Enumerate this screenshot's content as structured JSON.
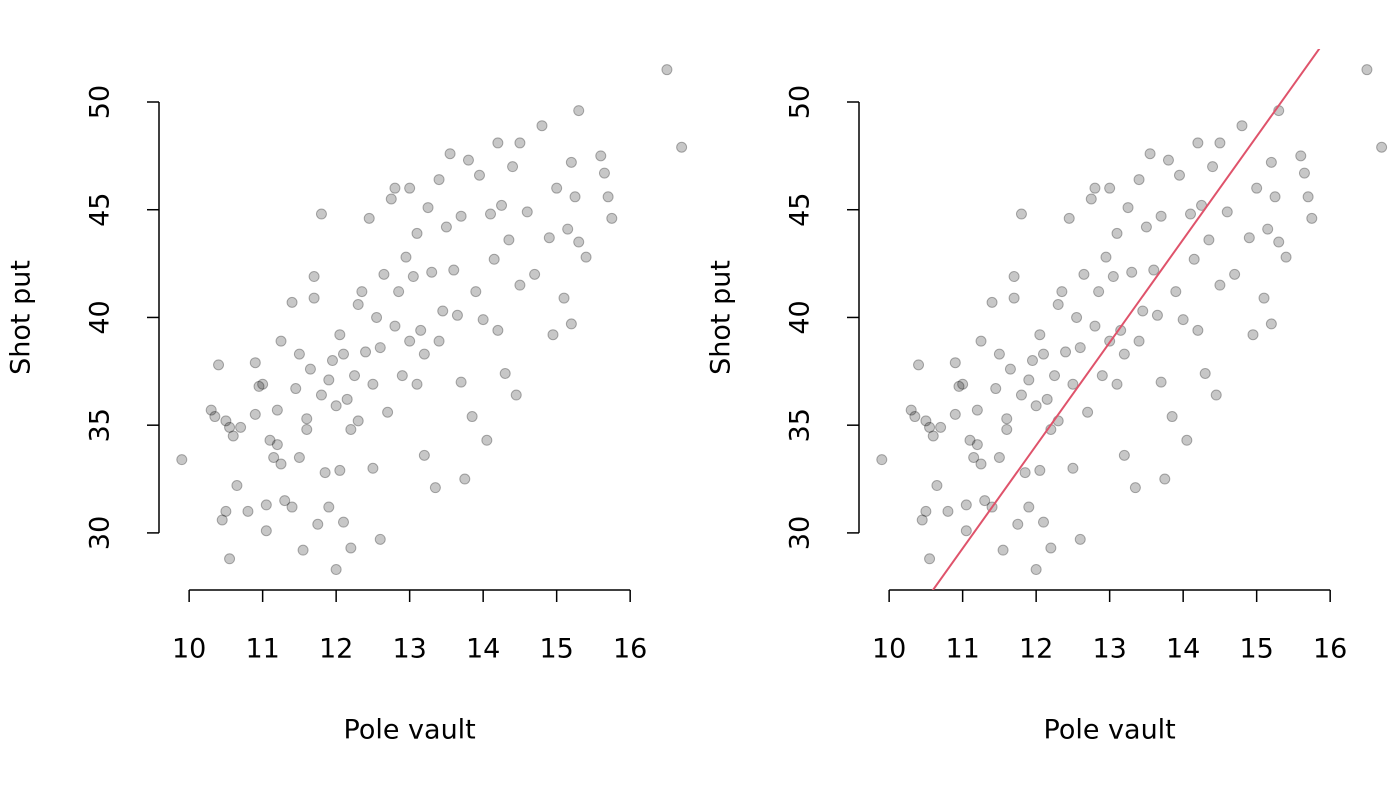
{
  "chart_data": [
    {
      "type": "scatter",
      "xlabel": "Pole vault",
      "ylabel": "Shot put",
      "color": "rgba(0,0,0,0.22)",
      "xlim": [
        9.59,
        16.95
      ],
      "ylim": [
        27.35,
        52.46
      ],
      "xticks": [
        10,
        11,
        12,
        13,
        14,
        15,
        16
      ],
      "yticks": [
        30,
        35,
        40,
        45,
        50
      ],
      "x": [
        9.9,
        10.3,
        10.35,
        10.4,
        10.45,
        10.5,
        10.5,
        10.55,
        10.6,
        10.55,
        10.65,
        10.7,
        10.8,
        10.9,
        10.9,
        10.95,
        11.0,
        11.05,
        11.05,
        11.1,
        11.15,
        11.2,
        11.2,
        11.25,
        11.25,
        11.3,
        11.4,
        11.4,
        11.45,
        11.5,
        11.5,
        11.55,
        11.6,
        11.6,
        11.65,
        11.7,
        11.7,
        11.75,
        11.8,
        11.8,
        11.85,
        11.9,
        11.9,
        11.95,
        12.0,
        12.0,
        12.05,
        12.05,
        12.1,
        12.1,
        12.15,
        12.2,
        12.2,
        12.25,
        12.3,
        12.3,
        12.35,
        12.4,
        12.45,
        12.5,
        12.5,
        12.55,
        12.6,
        12.6,
        12.65,
        12.7,
        12.75,
        12.8,
        12.8,
        12.85,
        12.9,
        12.95,
        13.0,
        13.0,
        13.05,
        13.1,
        13.1,
        13.15,
        13.2,
        13.2,
        13.25,
        13.3,
        13.35,
        13.4,
        13.4,
        13.45,
        13.5,
        13.55,
        13.6,
        13.65,
        13.7,
        13.7,
        13.75,
        13.8,
        13.85,
        13.9,
        13.95,
        14.0,
        14.05,
        14.1,
        14.15,
        14.2,
        14.2,
        14.25,
        14.3,
        14.35,
        14.4,
        14.45,
        14.5,
        14.5,
        14.6,
        14.7,
        14.8,
        14.9,
        14.95,
        15.0,
        15.1,
        15.15,
        15.2,
        15.2,
        15.25,
        15.3,
        15.3,
        15.4,
        15.6,
        15.65,
        15.7,
        15.75,
        16.5,
        16.7
      ],
      "values": [
        33.4,
        35.7,
        35.4,
        37.8,
        30.6,
        31.0,
        35.2,
        34.9,
        34.5,
        28.8,
        32.2,
        34.9,
        31.0,
        37.9,
        35.5,
        36.8,
        36.9,
        30.1,
        31.3,
        34.3,
        33.5,
        34.1,
        35.7,
        33.2,
        38.9,
        31.5,
        31.2,
        40.7,
        36.7,
        38.3,
        33.5,
        29.2,
        34.8,
        35.3,
        37.6,
        41.9,
        40.9,
        30.4,
        44.8,
        36.4,
        32.8,
        37.1,
        31.2,
        38.0,
        28.3,
        35.9,
        39.2,
        32.9,
        30.5,
        38.3,
        36.2,
        34.8,
        29.3,
        37.3,
        40.6,
        35.2,
        41.2,
        38.4,
        44.6,
        33.0,
        36.9,
        40.0,
        29.7,
        38.6,
        42.0,
        35.6,
        45.5,
        46.0,
        39.6,
        41.2,
        37.3,
        42.8,
        46.0,
        38.9,
        41.9,
        36.9,
        43.9,
        39.4,
        33.6,
        38.3,
        45.1,
        42.1,
        32.1,
        46.4,
        38.9,
        40.3,
        44.2,
        47.6,
        42.2,
        40.1,
        37.0,
        44.7,
        32.5,
        47.3,
        35.4,
        41.2,
        46.6,
        39.9,
        34.3,
        44.8,
        42.7,
        48.1,
        39.4,
        45.2,
        37.4,
        43.6,
        47.0,
        36.4,
        48.1,
        41.5,
        44.9,
        42.0,
        48.9,
        43.7,
        39.2,
        46.0,
        40.9,
        44.1,
        47.2,
        39.7,
        45.6,
        49.6,
        43.5,
        42.8,
        47.5,
        46.7,
        45.6,
        44.6,
        51.5,
        47.9
      ]
    },
    {
      "type": "scatter",
      "xlabel": "Pole vault",
      "ylabel": "Shot put",
      "color": "rgba(0,0,0,0.22)",
      "xlim": [
        9.59,
        16.95
      ],
      "ylim": [
        27.35,
        52.46
      ],
      "xticks": [
        10,
        11,
        12,
        13,
        14,
        15,
        16
      ],
      "yticks": [
        30,
        35,
        40,
        45,
        50
      ],
      "fit": {
        "intercept": -23.3,
        "slope": 4.78,
        "color": "#df536b"
      },
      "x": [
        9.9,
        10.3,
        10.35,
        10.4,
        10.45,
        10.5,
        10.5,
        10.55,
        10.6,
        10.55,
        10.65,
        10.7,
        10.8,
        10.9,
        10.9,
        10.95,
        11.0,
        11.05,
        11.05,
        11.1,
        11.15,
        11.2,
        11.2,
        11.25,
        11.25,
        11.3,
        11.4,
        11.4,
        11.45,
        11.5,
        11.5,
        11.55,
        11.6,
        11.6,
        11.65,
        11.7,
        11.7,
        11.75,
        11.8,
        11.8,
        11.85,
        11.9,
        11.9,
        11.95,
        12.0,
        12.0,
        12.05,
        12.05,
        12.1,
        12.1,
        12.15,
        12.2,
        12.2,
        12.25,
        12.3,
        12.3,
        12.35,
        12.4,
        12.45,
        12.5,
        12.5,
        12.55,
        12.6,
        12.6,
        12.65,
        12.7,
        12.75,
        12.8,
        12.8,
        12.85,
        12.9,
        12.95,
        13.0,
        13.0,
        13.05,
        13.1,
        13.1,
        13.15,
        13.2,
        13.2,
        13.25,
        13.3,
        13.35,
        13.4,
        13.4,
        13.45,
        13.5,
        13.55,
        13.6,
        13.65,
        13.7,
        13.7,
        13.75,
        13.8,
        13.85,
        13.9,
        13.95,
        14.0,
        14.05,
        14.1,
        14.15,
        14.2,
        14.2,
        14.25,
        14.3,
        14.35,
        14.4,
        14.45,
        14.5,
        14.5,
        14.6,
        14.7,
        14.8,
        14.9,
        14.95,
        15.0,
        15.1,
        15.15,
        15.2,
        15.2,
        15.25,
        15.3,
        15.3,
        15.4,
        15.6,
        15.65,
        15.7,
        15.75,
        16.5,
        16.7
      ],
      "values": [
        33.4,
        35.7,
        35.4,
        37.8,
        30.6,
        31.0,
        35.2,
        34.9,
        34.5,
        28.8,
        32.2,
        34.9,
        31.0,
        37.9,
        35.5,
        36.8,
        36.9,
        30.1,
        31.3,
        34.3,
        33.5,
        34.1,
        35.7,
        33.2,
        38.9,
        31.5,
        31.2,
        40.7,
        36.7,
        38.3,
        33.5,
        29.2,
        34.8,
        35.3,
        37.6,
        41.9,
        40.9,
        30.4,
        44.8,
        36.4,
        32.8,
        37.1,
        31.2,
        38.0,
        28.3,
        35.9,
        39.2,
        32.9,
        30.5,
        38.3,
        36.2,
        34.8,
        29.3,
        37.3,
        40.6,
        35.2,
        41.2,
        38.4,
        44.6,
        33.0,
        36.9,
        40.0,
        29.7,
        38.6,
        42.0,
        35.6,
        45.5,
        46.0,
        39.6,
        41.2,
        37.3,
        42.8,
        46.0,
        38.9,
        41.9,
        36.9,
        43.9,
        39.4,
        33.6,
        38.3,
        45.1,
        42.1,
        32.1,
        46.4,
        38.9,
        40.3,
        44.2,
        47.6,
        42.2,
        40.1,
        37.0,
        44.7,
        32.5,
        47.3,
        35.4,
        41.2,
        46.6,
        39.9,
        34.3,
        44.8,
        42.7,
        48.1,
        39.4,
        45.2,
        37.4,
        43.6,
        47.0,
        36.4,
        48.1,
        41.5,
        44.9,
        42.0,
        48.9,
        43.7,
        39.2,
        46.0,
        40.9,
        44.1,
        47.2,
        39.7,
        45.6,
        49.6,
        43.5,
        42.8,
        47.5,
        46.7,
        45.6,
        44.6,
        51.5,
        47.9
      ]
    }
  ]
}
